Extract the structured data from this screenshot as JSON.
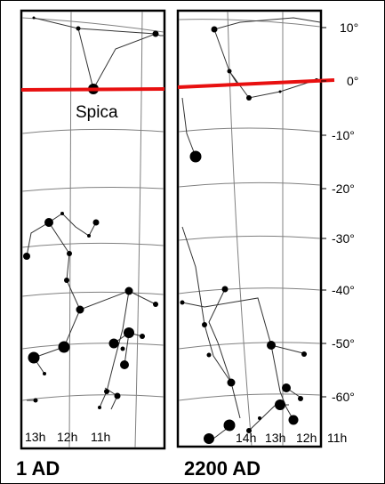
{
  "panels": [
    {
      "id": "left",
      "caption": "1 AD",
      "star_label": "Spica",
      "hour_labels": [
        "13h",
        "12h",
        "11h"
      ]
    },
    {
      "id": "right",
      "caption": "2200 AD",
      "hour_labels": [
        "14h",
        "13h",
        "12h",
        "11h"
      ]
    }
  ],
  "declination_labels": [
    "10°",
    "0°",
    "-10°",
    "-20°",
    "-30°",
    "-40°",
    "-50°",
    "-60°"
  ],
  "colors": {
    "equator": "#e81010",
    "grid": "#808080",
    "lines": "#333333",
    "stars": "#000000"
  }
}
